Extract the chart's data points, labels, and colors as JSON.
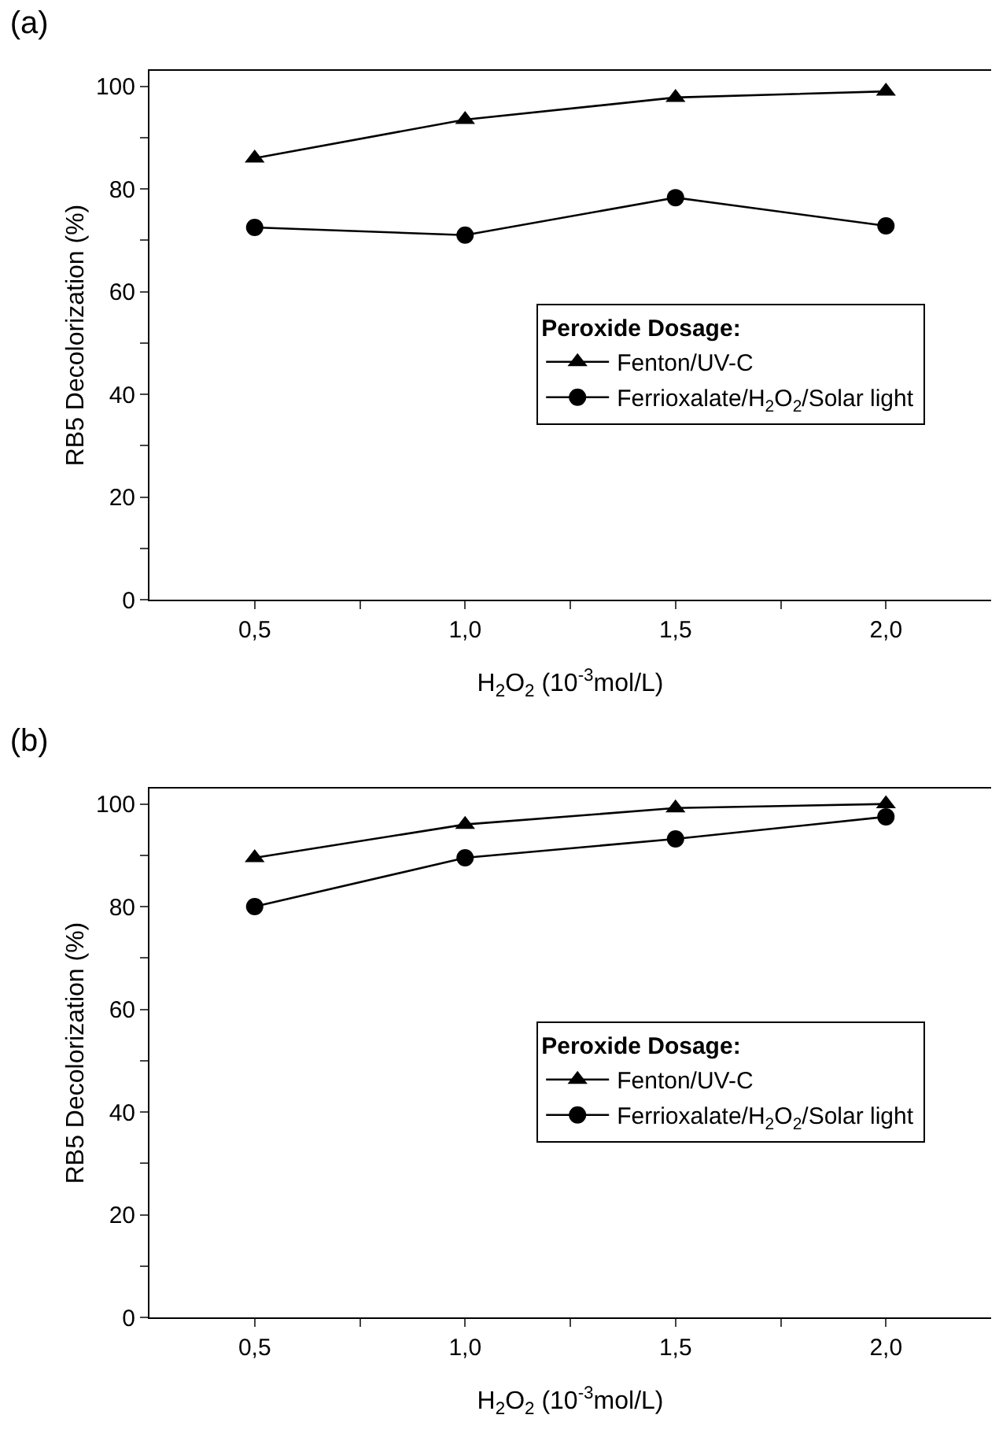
{
  "chart_data": [
    {
      "type": "line",
      "title": "(a)",
      "xlabel": "H$_{2}$O$_{2}$ (10$^{-3}$mol/L)",
      "ylabel": "RB5 Decolorization (%)",
      "legend_title": "Peroxide Dosage:",
      "x": [
        0.5,
        1.0,
        1.5,
        2.0
      ],
      "series": [
        {
          "name": "Fenton/UV-C",
          "color": "#000000",
          "marker": "triangle",
          "values": [
            86,
            93.5,
            97.8,
            99
          ]
        },
        {
          "name": "Ferrioxalate/H$_{2}$O$_{2}$/Solar light",
          "color": "#000000",
          "marker": "circle",
          "values": [
            72.5,
            71,
            78.3,
            72.8
          ]
        }
      ],
      "xlim": [
        0.25,
        2.25
      ],
      "xticks": [
        {
          "value": 0.5,
          "label": "0,5"
        },
        {
          "value": 0.75,
          "label": null
        },
        {
          "value": 1.0,
          "label": "1,0"
        },
        {
          "value": 1.25,
          "label": null
        },
        {
          "value": 1.5,
          "label": "1,5"
        },
        {
          "value": 1.75,
          "label": null
        },
        {
          "value": 2.0,
          "label": "2,0"
        }
      ],
      "ylim": [
        0,
        103
      ],
      "yticks": [
        0,
        {
          "value": 10,
          "label": null
        },
        20,
        {
          "value": 30,
          "label": null
        },
        40,
        {
          "value": 50,
          "label": null
        },
        60,
        {
          "value": 70,
          "label": null
        },
        80,
        {
          "value": 90,
          "label": null
        },
        100
      ],
      "grid": false,
      "legend": "right",
      "line_style": "solid"
    },
    {
      "type": "line",
      "title": "(b)",
      "xlabel": "H$_{2}$O$_{2}$ (10$^{-3}$mol/L)",
      "ylabel": "RB5 Decolorization (%)",
      "legend_title": "Peroxide Dosage:",
      "x": [
        0.5,
        1.0,
        1.5,
        2.0
      ],
      "series": [
        {
          "name": "Fenton/UV-C",
          "color": "#000000",
          "marker": "triangle",
          "values": [
            89.5,
            96,
            99.2,
            100
          ]
        },
        {
          "name": "Ferrioxalate/H$_{2}$O$_{2}$/Solar light",
          "color": "#000000",
          "marker": "circle",
          "values": [
            80,
            89.5,
            93.2,
            97.5
          ]
        }
      ],
      "xlim": [
        0.25,
        2.25
      ],
      "xticks": [
        {
          "value": 0.5,
          "label": "0,5"
        },
        {
          "value": 0.75,
          "label": null
        },
        {
          "value": 1.0,
          "label": "1,0"
        },
        {
          "value": 1.25,
          "label": null
        },
        {
          "value": 1.5,
          "label": "1,5"
        },
        {
          "value": 1.75,
          "label": null
        },
        {
          "value": 2.0,
          "label": "2,0"
        }
      ],
      "ylim": [
        0,
        103
      ],
      "yticks": [
        0,
        {
          "value": 10,
          "label": null
        },
        20,
        {
          "value": 30,
          "label": null
        },
        40,
        {
          "value": 50,
          "label": null
        },
        60,
        {
          "value": 70,
          "label": null
        },
        80,
        {
          "value": 90,
          "label": null
        },
        100
      ],
      "grid": false,
      "legend": "right",
      "line_style": "solid"
    }
  ]
}
